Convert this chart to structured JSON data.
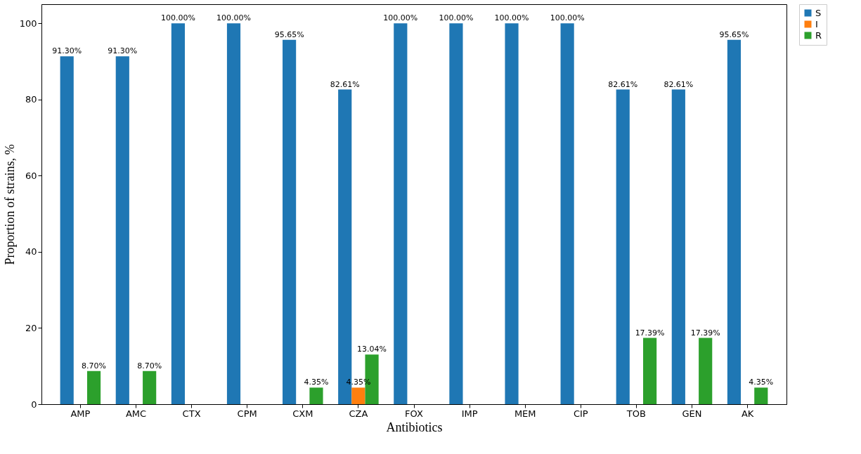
{
  "chart_data": {
    "type": "bar",
    "xlabel": "Antibiotics",
    "ylabel": "Proportion of strains, %",
    "categories": [
      "AMP",
      "AMC",
      "CTX",
      "CPM",
      "CXM",
      "CZA",
      "FOX",
      "IMP",
      "MEM",
      "CIP",
      "TOB",
      "GEN",
      "AK"
    ],
    "series": [
      {
        "name": "S",
        "color": "#1f77b4",
        "values": [
          91.3,
          91.3,
          100,
          100,
          95.65,
          82.61,
          100,
          100,
          100,
          100,
          82.61,
          82.61,
          95.65
        ],
        "value_labels": [
          "91.30%",
          "91.30%",
          "100.00%",
          "100.00%",
          "95.65%",
          "82.61%",
          "100.00%",
          "100.00%",
          "100.00%",
          "100.00%",
          "82.61%",
          "82.61%",
          "95.65%"
        ]
      },
      {
        "name": "I",
        "color": "#ff7f0e",
        "values": [
          0,
          0,
          0,
          0,
          0,
          4.35,
          0,
          0,
          0,
          0,
          0,
          0,
          0
        ],
        "value_labels": [
          null,
          null,
          null,
          null,
          null,
          "4.35%",
          null,
          null,
          null,
          null,
          null,
          null,
          null
        ]
      },
      {
        "name": "R",
        "color": "#2ca02c",
        "values": [
          8.7,
          8.7,
          0,
          0,
          4.35,
          13.04,
          0,
          0,
          0,
          0,
          17.39,
          17.39,
          4.35
        ],
        "value_labels": [
          "8.70%",
          "8.70%",
          null,
          null,
          "4.35%",
          "13.04%",
          null,
          null,
          null,
          null,
          "17.39%",
          "17.39%",
          "4.35%"
        ]
      }
    ],
    "ylim": [
      0,
      105
    ],
    "yticks": [
      0,
      20,
      40,
      60,
      80,
      100
    ],
    "grid": false,
    "legend": "right"
  }
}
